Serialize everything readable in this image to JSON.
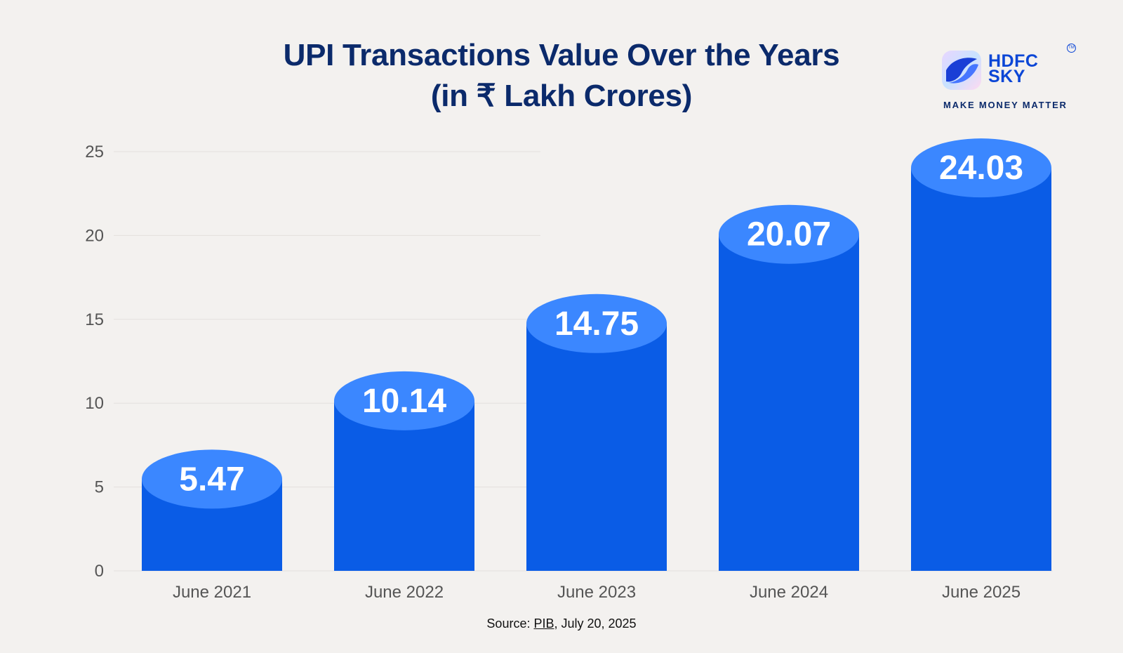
{
  "title_line1": "UPI Transactions Value Over the Years",
  "title_line2": "(in ₹ Lakh Crores)",
  "logo": {
    "line1": "HDFC",
    "line2": "SKY",
    "tm": "TM",
    "tagline": "MAKE MONEY MATTER",
    "icon": "hdfc-sky-logo-icon"
  },
  "source": {
    "prefix": "Source: ",
    "link": "PIB",
    "suffix": ", July 20, 2025"
  },
  "colors": {
    "bar": "#0a5ce6",
    "bar_cap": "#3b87ff",
    "title": "#0b2a6b",
    "axis_text": "#555555",
    "grid": "#e3e0dd"
  },
  "chart_data": {
    "type": "bar",
    "title": "UPI Transactions Value Over the Years (in ₹ Lakh Crores)",
    "xlabel": "",
    "ylabel": "",
    "categories": [
      "June 2021",
      "June 2022",
      "June 2023",
      "June 2024",
      "June 2025"
    ],
    "values": [
      5.47,
      10.14,
      14.75,
      20.07,
      24.03
    ],
    "value_labels": [
      "5.47",
      "10.14",
      "14.75",
      "20.07",
      "24.03"
    ],
    "ylim": [
      0,
      25
    ],
    "yticks": [
      0,
      5,
      10,
      15,
      20,
      25
    ],
    "grid": true,
    "legend": "none"
  }
}
